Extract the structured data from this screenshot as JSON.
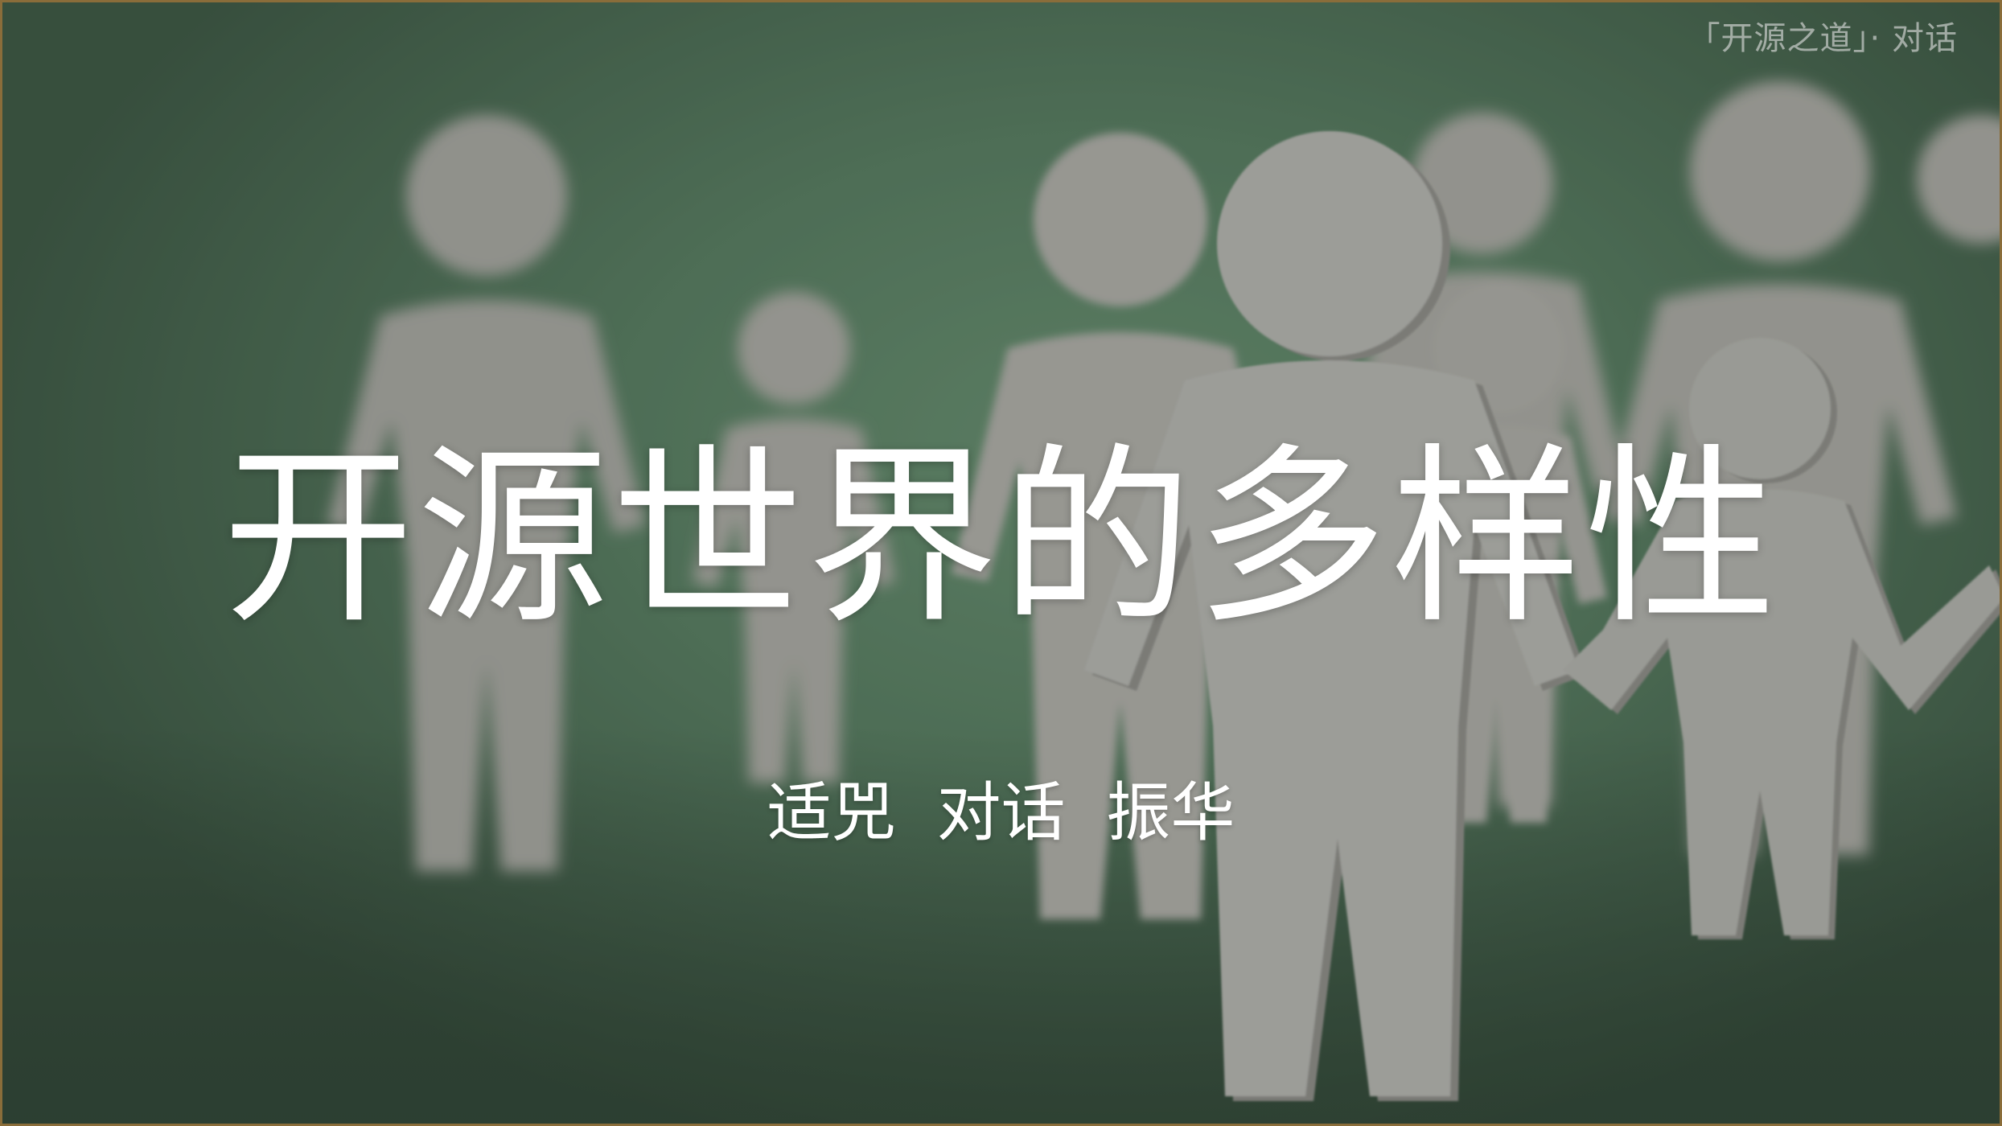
{
  "slide": {
    "series_tag": "「开源之道」· 对话",
    "title": "开源世界的多样性",
    "authors": "适兕  对话  振华"
  },
  "background_image": {
    "colors": {
      "backdrop": "#5c8466",
      "figure": "#c9c6c2",
      "figure_shadow": "#9c9894",
      "border": "#8a6d3a"
    }
  }
}
